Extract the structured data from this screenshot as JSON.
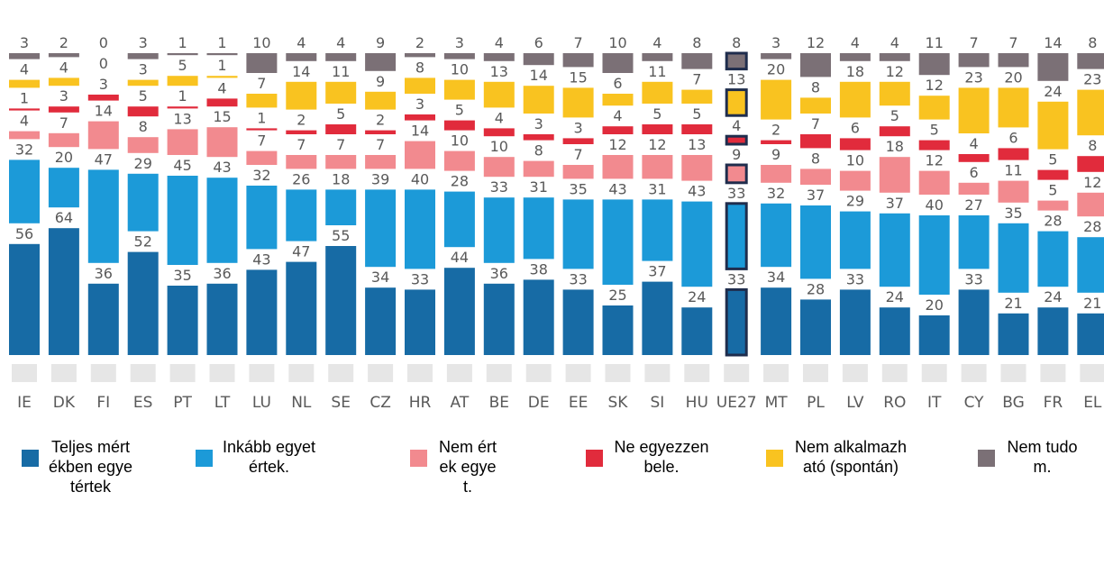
{
  "chart_data": {
    "type": "bar",
    "stacked": true,
    "categories": [
      "IE",
      "DK",
      "FI",
      "ES",
      "PT",
      "LT",
      "LU",
      "NL",
      "SE",
      "CZ",
      "HR",
      "AT",
      "BE",
      "DE",
      "EE",
      "SK",
      "SI",
      "HU",
      "UE27",
      "MT",
      "PL",
      "LV",
      "RO",
      "IT",
      "CY",
      "BG",
      "FR",
      "EL"
    ],
    "highlight": "UE27",
    "series": [
      {
        "name": "Teljes mértékben egyetértek",
        "color": "#176ba5",
        "values": [
          56,
          64,
          36,
          52,
          35,
          36,
          43,
          47,
          55,
          34,
          33,
          44,
          36,
          38,
          33,
          25,
          37,
          24,
          33,
          34,
          28,
          33,
          24,
          20,
          33,
          21,
          24,
          21
        ]
      },
      {
        "name": "Inkább egyetértek.",
        "color": "#1c9ad8",
        "values": [
          32,
          20,
          47,
          29,
          45,
          43,
          32,
          26,
          18,
          39,
          40,
          28,
          33,
          31,
          35,
          43,
          31,
          43,
          33,
          32,
          37,
          29,
          37,
          40,
          27,
          35,
          28,
          28
        ]
      },
      {
        "name": "Nem értek egyet.",
        "color": "#f28a8f",
        "values": [
          4,
          7,
          14,
          8,
          13,
          15,
          7,
          7,
          7,
          7,
          14,
          10,
          10,
          8,
          7,
          12,
          12,
          13,
          9,
          9,
          8,
          10,
          18,
          12,
          6,
          11,
          5,
          12
        ]
      },
      {
        "name": "Ne egyezzen bele.",
        "color": "#e12b3c",
        "values": [
          1,
          3,
          3,
          5,
          1,
          4,
          1,
          2,
          5,
          2,
          3,
          5,
          4,
          3,
          3,
          4,
          5,
          5,
          4,
          2,
          7,
          6,
          5,
          5,
          4,
          6,
          5,
          8
        ]
      },
      {
        "name": "Nem alkalmazható (spontán)",
        "color": "#f9c320",
        "values": [
          4,
          4,
          0,
          3,
          5,
          1,
          7,
          14,
          11,
          9,
          8,
          10,
          13,
          14,
          15,
          6,
          11,
          7,
          13,
          20,
          8,
          18,
          12,
          12,
          23,
          20,
          24,
          23
        ]
      },
      {
        "name": "Nem tudom.",
        "color": "#7b7076",
        "values": [
          3,
          2,
          0,
          3,
          1,
          1,
          10,
          4,
          4,
          9,
          2,
          3,
          4,
          6,
          7,
          10,
          4,
          8,
          8,
          3,
          12,
          4,
          4,
          11,
          7,
          7,
          14,
          8
        ]
      }
    ]
  }
}
